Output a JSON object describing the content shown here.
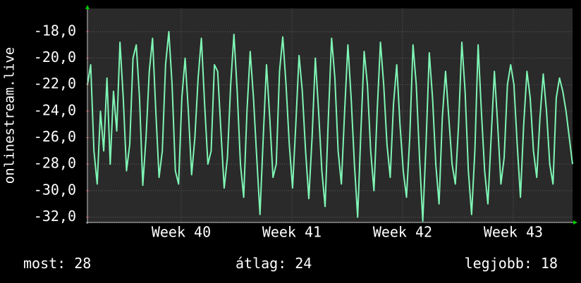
{
  "chart_data": {
    "type": "line",
    "ylabel": "onlinestream.live",
    "series": [
      {
        "name": "onlinestream.live",
        "color": "#7ff5b4",
        "values": [
          -22,
          -20.5,
          -27,
          -29.5,
          -24,
          -27,
          -21.5,
          -28,
          -22.5,
          -25.5,
          -18.8,
          -23,
          -28.5,
          -26.5,
          -20,
          -19,
          -23,
          -29.6,
          -26,
          -21,
          -18.5,
          -24,
          -29,
          -27,
          -20.5,
          -18,
          -22,
          -28.5,
          -29.5,
          -23,
          -20,
          -24,
          -28.8,
          -26,
          -21.5,
          -18.5,
          -23.5,
          -28,
          -27,
          -20.5,
          -21,
          -25.5,
          -29.8,
          -27.5,
          -22,
          -18.2,
          -22.5,
          -28,
          -30.5,
          -24,
          -19.5,
          -23,
          -27.5,
          -31.8,
          -26,
          -20.5,
          -24.5,
          -29,
          -28,
          -21,
          -18.4,
          -22,
          -26.5,
          -29.8,
          -25,
          -19.8,
          -22.5,
          -27,
          -30.6,
          -26,
          -20,
          -24,
          -28.5,
          -31.2,
          -24.5,
          -18.5,
          -21.5,
          -27,
          -29.5,
          -24,
          -19,
          -23,
          -28,
          -32,
          -25.5,
          -19.5,
          -22,
          -27,
          -30,
          -24,
          -18.8,
          -22,
          -26.5,
          -29,
          -23.5,
          -20.5,
          -25,
          -28.5,
          -30.5,
          -26,
          -19,
          -22,
          -27.5,
          -32.3,
          -26.5,
          -19.6,
          -23,
          -28,
          -31,
          -24.5,
          -21,
          -24.5,
          -28,
          -29.5,
          -25,
          -18.8,
          -22.5,
          -28.5,
          -31.8,
          -27,
          -19,
          -24,
          -28.5,
          -31,
          -26,
          -21,
          -25,
          -29.5,
          -27.5,
          -22,
          -20.5,
          -22,
          -26.5,
          -30.5,
          -25,
          -21,
          -23,
          -27,
          -29,
          -24.5,
          -21.2,
          -24,
          -28,
          -29.5,
          -23,
          -21.5,
          -22.5,
          -24,
          -26,
          -28
        ]
      }
    ],
    "xlim": [
      0,
      149
    ],
    "xticks": [
      {
        "value": 28.8,
        "label": "Week 40"
      },
      {
        "value": 62.8,
        "label": "Week 41"
      },
      {
        "value": 96.8,
        "label": "Week 42"
      },
      {
        "value": 130.8,
        "label": "Week 43"
      }
    ],
    "ylim": [
      -32.4,
      -16.25
    ],
    "yticks": [
      {
        "value": -32,
        "label": "-32,0"
      },
      {
        "value": -30,
        "label": "-30,0"
      },
      {
        "value": -28,
        "label": "-28,0"
      },
      {
        "value": -26,
        "label": "-26,0"
      },
      {
        "value": -24,
        "label": "-24,0"
      },
      {
        "value": -22,
        "label": "-22,0"
      },
      {
        "value": -20,
        "label": "-20,0"
      },
      {
        "value": -18,
        "label": "-18,0"
      }
    ],
    "grid": true,
    "footer": [
      {
        "label": "most:",
        "value": 28
      },
      {
        "label": "átlag:",
        "value": 24
      },
      {
        "label": "legjobb:",
        "value": 18
      }
    ]
  }
}
